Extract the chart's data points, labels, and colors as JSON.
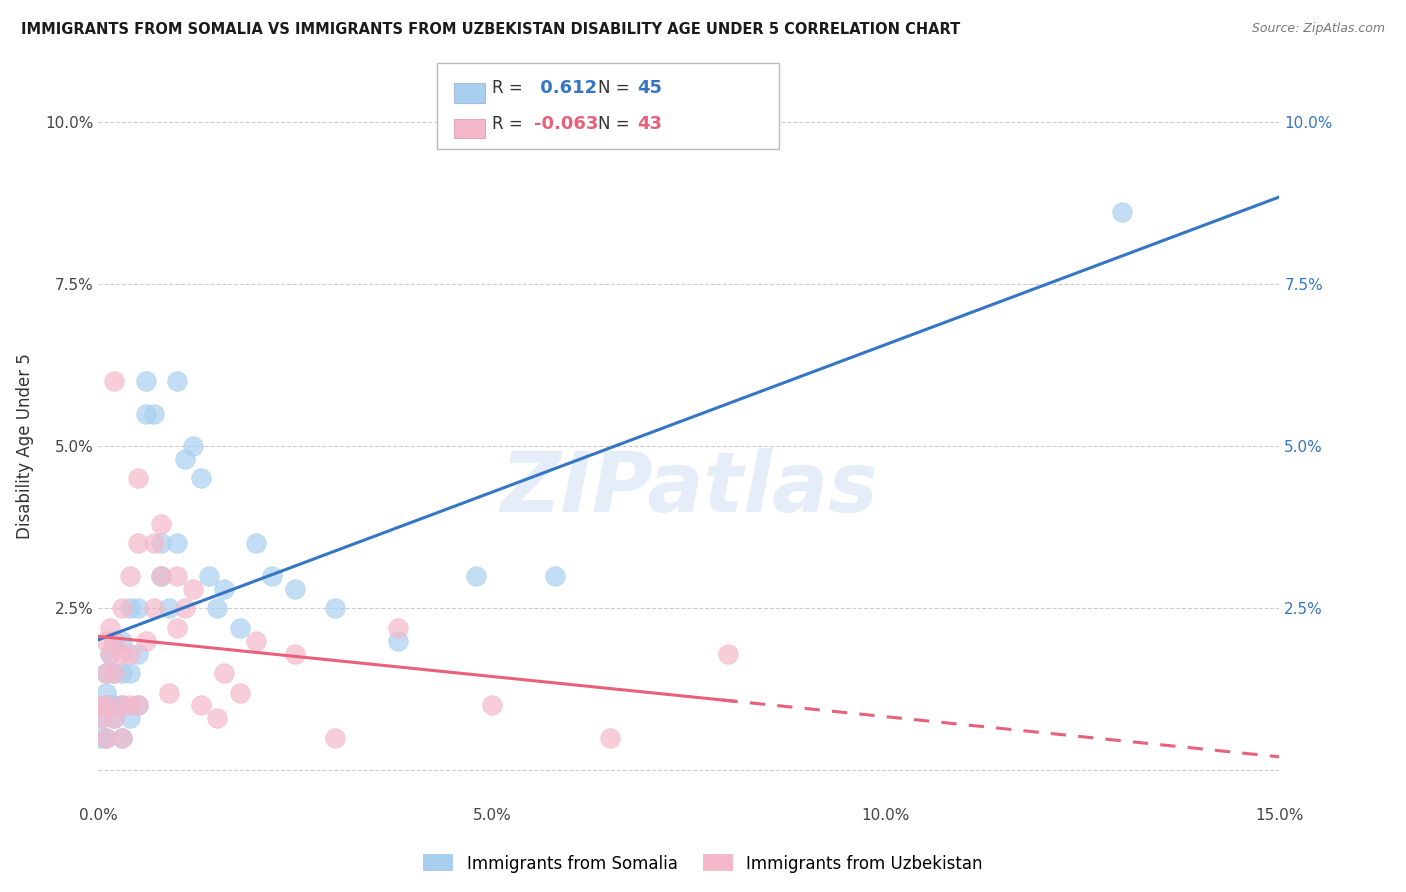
{
  "title": "IMMIGRANTS FROM SOMALIA VS IMMIGRANTS FROM UZBEKISTAN DISABILITY AGE UNDER 5 CORRELATION CHART",
  "source": "Source: ZipAtlas.com",
  "ylabel": "Disability Age Under 5",
  "xlim": [
    0.0,
    0.15
  ],
  "ylim": [
    -0.005,
    0.105
  ],
  "somalia_R": 0.612,
  "somalia_N": 45,
  "uzbekistan_R": -0.063,
  "uzbekistan_N": 43,
  "somalia_color": "#a8cff0",
  "uzbekistan_color": "#f5b8cb",
  "somalia_line_color": "#3575c5",
  "uzbekistan_line_color": "#e8607a",
  "background_color": "#ffffff",
  "grid_color": "#cccccc",
  "watermark_text": "ZIPatlas",
  "somalia_x": [
    0.0003,
    0.0005,
    0.0007,
    0.001,
    0.001,
    0.001,
    0.0015,
    0.0015,
    0.002,
    0.002,
    0.002,
    0.002,
    0.003,
    0.003,
    0.003,
    0.003,
    0.004,
    0.004,
    0.004,
    0.005,
    0.005,
    0.005,
    0.006,
    0.006,
    0.007,
    0.008,
    0.008,
    0.009,
    0.01,
    0.01,
    0.011,
    0.012,
    0.013,
    0.014,
    0.015,
    0.016,
    0.018,
    0.02,
    0.022,
    0.025,
    0.03,
    0.038,
    0.048,
    0.058,
    0.13
  ],
  "somalia_y": [
    0.005,
    0.008,
    0.01,
    0.012,
    0.015,
    0.005,
    0.01,
    0.018,
    0.008,
    0.015,
    0.02,
    0.01,
    0.005,
    0.01,
    0.015,
    0.02,
    0.008,
    0.015,
    0.025,
    0.01,
    0.018,
    0.025,
    0.055,
    0.06,
    0.055,
    0.03,
    0.035,
    0.025,
    0.035,
    0.06,
    0.048,
    0.05,
    0.045,
    0.03,
    0.025,
    0.028,
    0.022,
    0.035,
    0.03,
    0.028,
    0.025,
    0.02,
    0.03,
    0.03,
    0.086
  ],
  "uzbekistan_x": [
    0.0003,
    0.0005,
    0.001,
    0.001,
    0.001,
    0.001,
    0.0015,
    0.0015,
    0.002,
    0.002,
    0.002,
    0.002,
    0.003,
    0.003,
    0.003,
    0.003,
    0.004,
    0.004,
    0.004,
    0.005,
    0.005,
    0.005,
    0.006,
    0.007,
    0.007,
    0.008,
    0.008,
    0.009,
    0.01,
    0.01,
    0.011,
    0.012,
    0.013,
    0.015,
    0.016,
    0.018,
    0.02,
    0.025,
    0.03,
    0.038,
    0.05,
    0.065,
    0.08
  ],
  "uzbekistan_y": [
    0.008,
    0.01,
    0.015,
    0.02,
    0.01,
    0.005,
    0.018,
    0.022,
    0.008,
    0.015,
    0.02,
    0.06,
    0.005,
    0.01,
    0.018,
    0.025,
    0.01,
    0.018,
    0.03,
    0.035,
    0.045,
    0.01,
    0.02,
    0.025,
    0.035,
    0.03,
    0.038,
    0.012,
    0.022,
    0.03,
    0.025,
    0.028,
    0.01,
    0.008,
    0.015,
    0.012,
    0.02,
    0.018,
    0.005,
    0.022,
    0.01,
    0.005,
    0.018
  ]
}
